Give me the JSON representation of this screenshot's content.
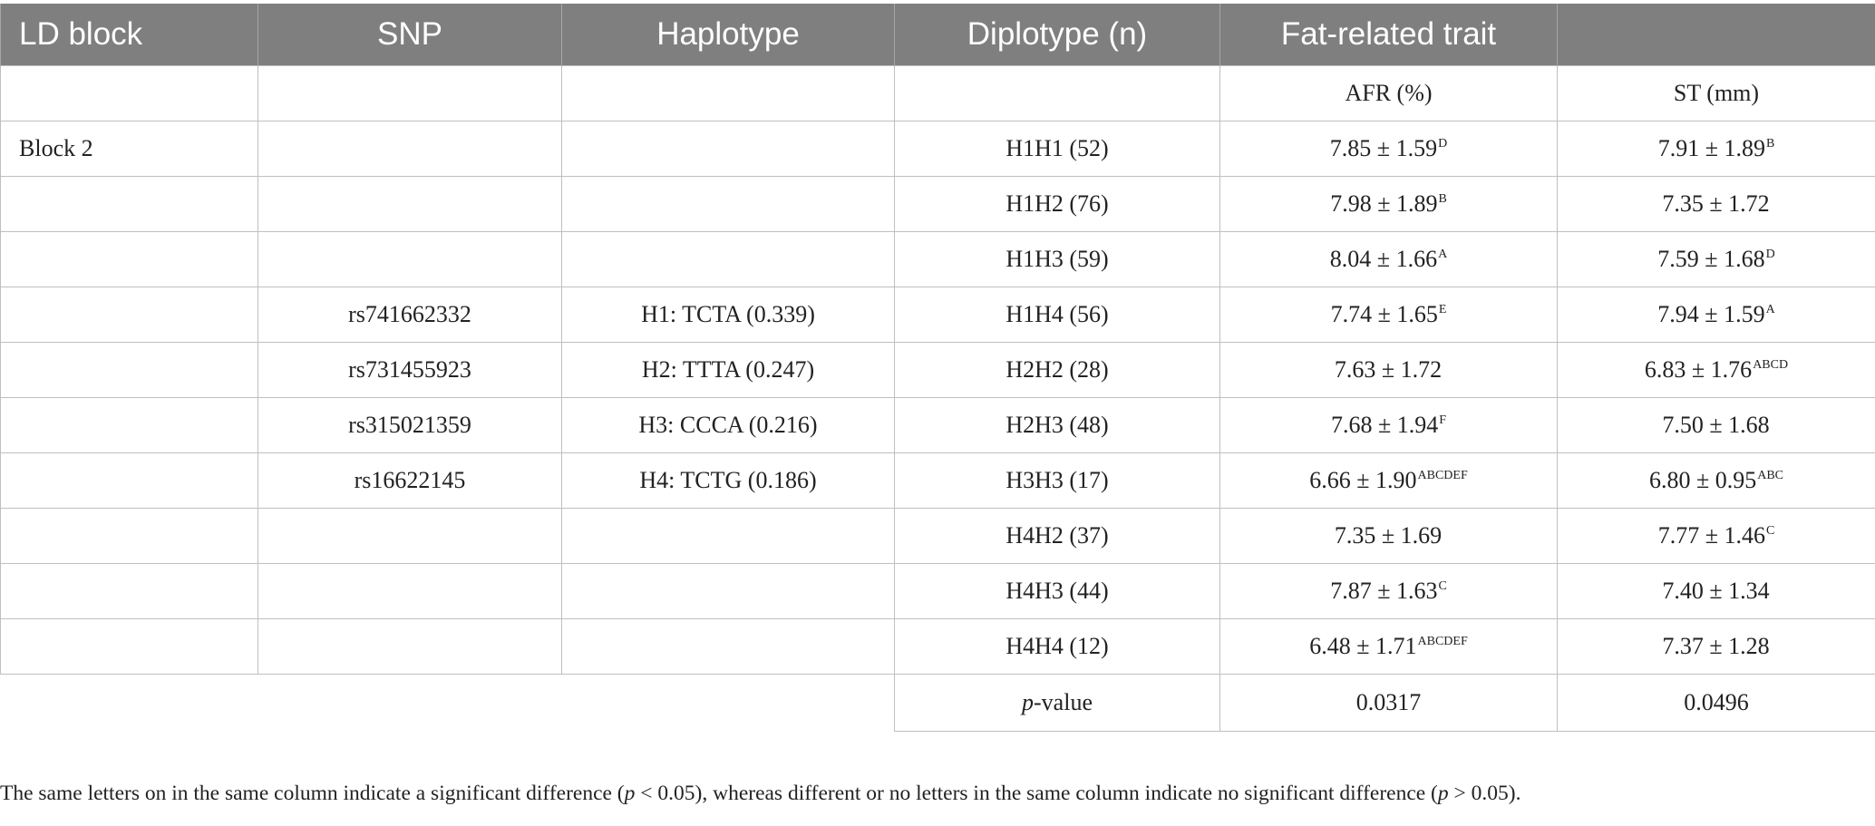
{
  "headers": [
    "LD block",
    "SNP",
    "Haplotype",
    "Diplotype (n)",
    "Fat-related trait",
    ""
  ],
  "subheader": [
    "",
    "",
    "",
    "",
    "AFR (%)",
    "ST (mm)"
  ],
  "rows": [
    {
      "ld_block": "Block 2",
      "snp": "",
      "haplotype": "",
      "diplotype": "H1H1 (52)",
      "afr": "7.85 ± 1.59",
      "afr_sup": "D",
      "st": "7.91 ± 1.89",
      "st_sup": "B"
    },
    {
      "ld_block": "",
      "snp": "",
      "haplotype": "",
      "diplotype": "H1H2 (76)",
      "afr": "7.98 ± 1.89",
      "afr_sup": "B",
      "st": "7.35 ± 1.72",
      "st_sup": ""
    },
    {
      "ld_block": "",
      "snp": "",
      "haplotype": "",
      "diplotype": "H1H3 (59)",
      "afr": "8.04 ± 1.66",
      "afr_sup": "A",
      "st": "7.59 ± 1.68",
      "st_sup": "D"
    },
    {
      "ld_block": "",
      "snp": "rs741662332",
      "haplotype": "H1: TCTA (0.339)",
      "diplotype": "H1H4 (56)",
      "afr": "7.74 ± 1.65",
      "afr_sup": "E",
      "st": "7.94 ± 1.59",
      "st_sup": "A"
    },
    {
      "ld_block": "",
      "snp": "rs731455923",
      "haplotype": "H2: TTTA (0.247)",
      "diplotype": "H2H2 (28)",
      "afr": "7.63 ± 1.72",
      "afr_sup": "",
      "st": "6.83 ± 1.76",
      "st_sup": "ABCD"
    },
    {
      "ld_block": "",
      "snp": "rs315021359",
      "haplotype": "H3: CCCA (0.216)",
      "diplotype": "H2H3 (48)",
      "afr": "7.68 ± 1.94",
      "afr_sup": "F",
      "st": "7.50 ± 1.68",
      "st_sup": ""
    },
    {
      "ld_block": "",
      "snp": "rs16622145",
      "haplotype": "H4: TCTG (0.186)",
      "diplotype": "H3H3 (17)",
      "afr": "6.66 ± 1.90",
      "afr_sup": "ABCDEF",
      "st": "6.80 ± 0.95",
      "st_sup": "ABC"
    },
    {
      "ld_block": "",
      "snp": "",
      "haplotype": "",
      "diplotype": "H4H2 (37)",
      "afr": "7.35 ± 1.69",
      "afr_sup": "",
      "st": "7.77 ± 1.46",
      "st_sup": "C"
    },
    {
      "ld_block": "",
      "snp": "",
      "haplotype": "",
      "diplotype": "H4H3 (44)",
      "afr": "7.87 ± 1.63",
      "afr_sup": "C",
      "st": "7.40 ± 1.34",
      "st_sup": ""
    },
    {
      "ld_block": "",
      "snp": "",
      "haplotype": "",
      "diplotype": "H4H4 (12)",
      "afr": "6.48 ± 1.71",
      "afr_sup": "ABCDEF",
      "st": "7.37 ± 1.28",
      "st_sup": ""
    }
  ],
  "pvalue_row": {
    "label_italic": "p",
    "label_rest": "-value",
    "afr": "0.0317",
    "st": "0.0496"
  },
  "footnote": {
    "part1": "The same letters on in the same column indicate a significant difference (",
    "p1": "p",
    "part2": " < 0.05), whereas different or no letters in the same column indicate no significant difference (",
    "p2": "p",
    "part3": " > 0.05)."
  }
}
